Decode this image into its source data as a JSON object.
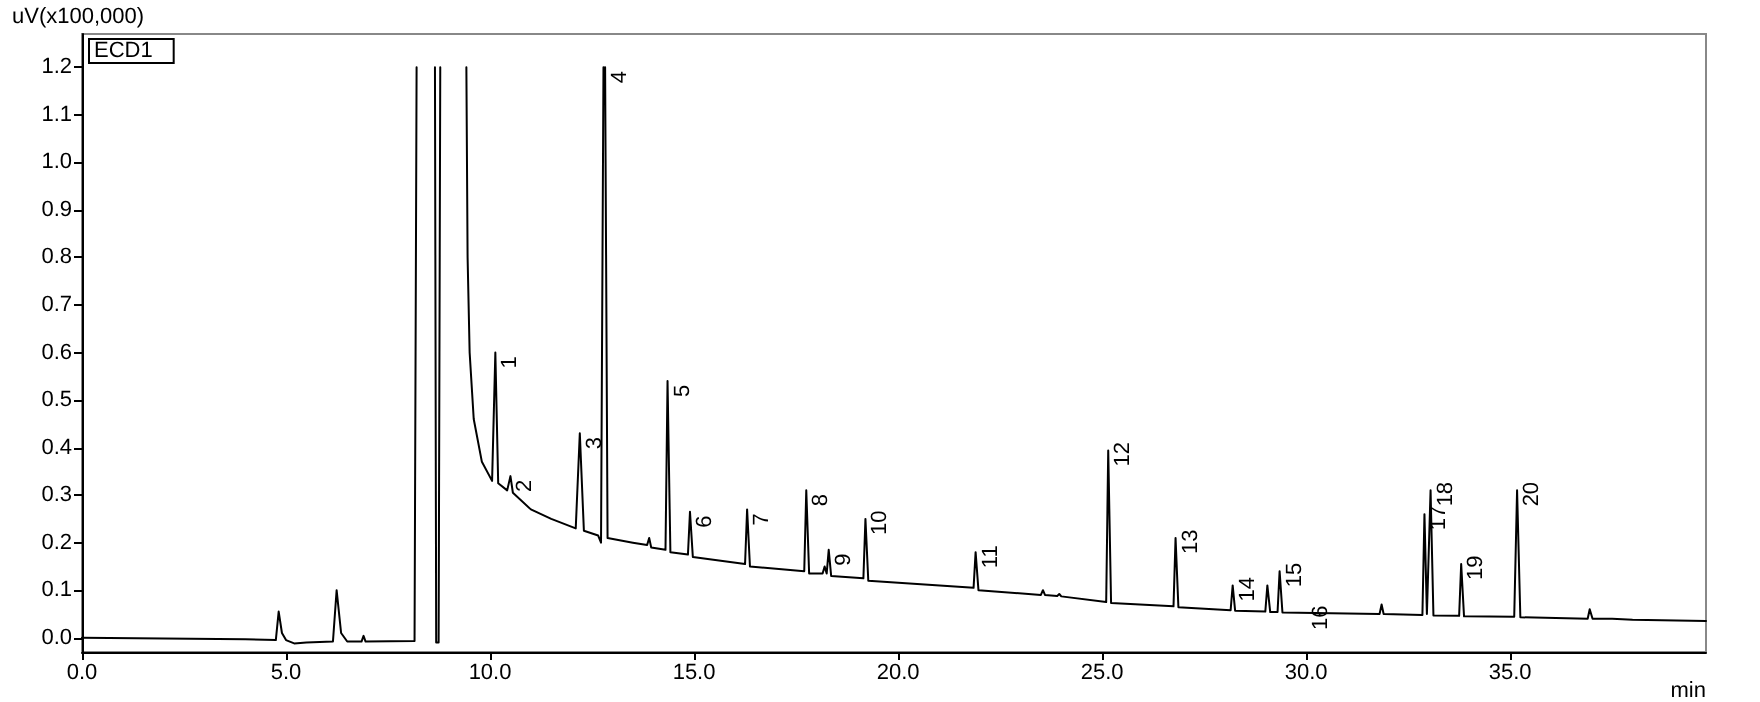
{
  "chart_data": {
    "type": "line",
    "xlabel": "min",
    "ylabel": "uV(x100,000)",
    "xlim": [
      0,
      39.8
    ],
    "ylim": [
      -0.03,
      1.27
    ],
    "xticks": [
      {
        "value": 0,
        "label": "0.0"
      },
      {
        "value": 5,
        "label": "5.0"
      },
      {
        "value": 10,
        "label": "10.0"
      },
      {
        "value": 15,
        "label": "15.0"
      },
      {
        "value": 20,
        "label": "20.0"
      },
      {
        "value": 25,
        "label": "25.0"
      },
      {
        "value": 30,
        "label": "30.0"
      },
      {
        "value": 35,
        "label": "35.0"
      }
    ],
    "yticks": [
      {
        "value": 0,
        "label": "0.0"
      },
      0.1,
      0.2,
      0.3,
      0.4,
      0.5,
      0.6,
      0.7,
      0.8,
      0.9,
      {
        "value": 1,
        "label": "1.0"
      },
      1.1,
      1.2
    ],
    "marker": "none",
    "line_style": "solid",
    "series": [
      {
        "color": "#000000",
        "x": [
          0,
          4.0,
          4.75,
          4.82,
          4.9,
          5.0,
          5.2,
          5.5,
          6.15,
          6.24,
          6.35,
          6.5,
          6.85,
          6.9,
          6.95,
          8.15,
          8.2,
          8.4,
          8.65,
          8.68,
          8.74,
          8.78,
          9.1,
          9.42,
          9.45,
          9.5,
          9.6,
          9.8,
          10.05,
          10.13,
          10.2,
          10.42,
          10.5,
          10.56,
          11.0,
          11.5,
          12.1,
          12.2,
          12.3,
          12.65,
          12.72,
          12.78,
          12.8,
          12.82,
          12.88,
          13.5,
          13.85,
          13.9,
          13.95,
          14.3,
          14.35,
          14.42,
          14.85,
          14.9,
          14.97,
          16.25,
          16.3,
          16.37,
          17.7,
          17.75,
          17.82,
          18.15,
          18.2,
          18.25,
          18.3,
          18.36,
          19.15,
          19.2,
          19.27,
          21.85,
          21.9,
          21.97,
          23.5,
          23.55,
          23.6,
          23.9,
          23.95,
          24.0,
          25.1,
          25.15,
          25.22,
          26.75,
          26.8,
          26.87,
          28.15,
          28.2,
          28.26,
          29.0,
          29.05,
          29.12,
          29.3,
          29.35,
          29.42,
          31.8,
          31.85,
          31.9,
          32.85,
          32.9,
          32.96,
          33.05,
          33.12,
          33.75,
          33.8,
          33.87,
          35.1,
          35.17,
          35.25,
          36.9,
          36.95,
          37.02,
          37.5,
          38.0,
          39.8
        ],
        "values": [
          0,
          -0.003,
          -0.005,
          0.055,
          0.01,
          -0.005,
          -0.012,
          -0.01,
          -0.008,
          0.1,
          0.01,
          -0.008,
          -0.008,
          0.004,
          -0.008,
          -0.007,
          1.2,
          null,
          1.2,
          -0.01,
          -0.01,
          1.2,
          null,
          1.2,
          0.8,
          0.6,
          0.46,
          0.37,
          0.33,
          0.6,
          0.325,
          0.31,
          0.34,
          0.305,
          0.27,
          0.25,
          0.23,
          0.43,
          0.225,
          0.215,
          0.2,
          1.2,
          null,
          1.2,
          0.21,
          0.2,
          0.195,
          0.21,
          0.19,
          0.185,
          0.54,
          0.18,
          0.175,
          0.265,
          0.17,
          0.155,
          0.27,
          0.15,
          0.14,
          0.31,
          0.135,
          0.135,
          0.15,
          0.135,
          0.185,
          0.13,
          0.125,
          0.25,
          0.12,
          0.105,
          0.18,
          0.1,
          0.09,
          0.1,
          0.09,
          0.088,
          0.092,
          0.087,
          0.075,
          0.394,
          0.073,
          0.066,
          0.21,
          0.064,
          0.058,
          0.11,
          0.057,
          0.055,
          0.11,
          0.054,
          0.054,
          0.14,
          0.053,
          0.05,
          0.07,
          0.05,
          0.048,
          0.26,
          0.05,
          0.31,
          0.047,
          0.046,
          0.155,
          0.045,
          0.044,
          0.31,
          0.043,
          0.04,
          0.06,
          0.04,
          0.04,
          0.038,
          0.035
        ]
      }
    ],
    "annotations": [
      "ECD1",
      {
        "text": "1",
        "x": 10.13,
        "y": 0.6
      },
      {
        "text": "2",
        "x": 10.5,
        "y": 0.34
      },
      {
        "text": "3",
        "x": 12.2,
        "y": 0.43
      },
      {
        "text": "4",
        "x": 12.82,
        "y": 1.2
      },
      {
        "text": "5",
        "x": 14.35,
        "y": 0.54
      },
      {
        "text": "6",
        "x": 14.9,
        "y": 0.265
      },
      {
        "text": "7",
        "x": 16.3,
        "y": 0.27
      },
      {
        "text": "8",
        "x": 17.75,
        "y": 0.31
      },
      {
        "text": "9",
        "x": 18.3,
        "y": 0.185
      },
      {
        "text": "10",
        "x": 19.2,
        "y": 0.25
      },
      {
        "text": "11",
        "x": 21.9,
        "y": 0.18
      },
      {
        "text": "12",
        "x": 25.15,
        "y": 0.394
      },
      {
        "text": "13",
        "x": 26.8,
        "y": 0.21
      },
      {
        "text": "14",
        "x": 28.2,
        "y": 0.11
      },
      {
        "text": "15",
        "x": 29.35,
        "y": 0.14
      },
      {
        "text": "16",
        "x": 30.0,
        "y": 0.05
      },
      {
        "text": "17",
        "x": 32.9,
        "y": 0.26
      },
      {
        "text": "18",
        "x": 33.05,
        "y": 0.31
      },
      {
        "text": "19",
        "x": 33.8,
        "y": 0.155
      },
      {
        "text": "20",
        "x": 35.17,
        "y": 0.31
      }
    ]
  }
}
